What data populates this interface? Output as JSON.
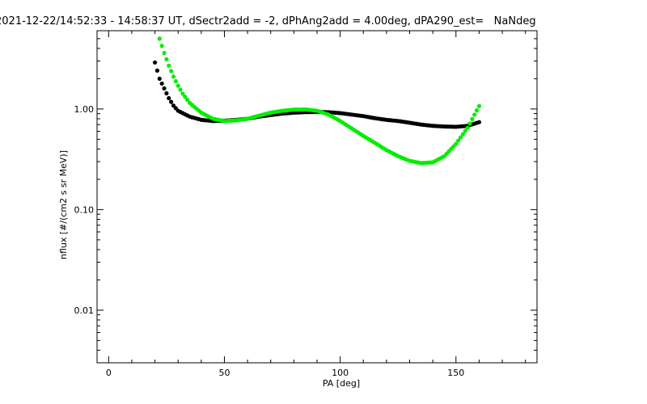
{
  "chart_data": {
    "type": "scatter",
    "title": "2021-12-22/14:52:33 - 14:58:37 UT, dSectr2add = -2, dPhAng2add = 4.00deg, dPA290_est=   NaNdeg",
    "xlabel": "PA [deg]",
    "ylabel": "nflux [#/(cm2 s sr MeV)]",
    "xlim": [
      -5,
      185
    ],
    "ylim": [
      0.003,
      6
    ],
    "y_scale": "log",
    "grid": false,
    "x_ticks": [
      {
        "value": 0,
        "label": "0"
      },
      {
        "value": 50,
        "label": "50"
      },
      {
        "value": 100,
        "label": "100"
      },
      {
        "value": 150,
        "label": "150"
      }
    ],
    "y_ticks": [
      {
        "value": 0.01,
        "label": "0.01"
      },
      {
        "value": 0.1,
        "label": "0.10"
      },
      {
        "value": 1,
        "label": "1.00"
      }
    ],
    "series": [
      {
        "color": "#000000",
        "points": [
          [
            20,
            2.9
          ],
          [
            22,
            2.0
          ],
          [
            24,
            1.6
          ],
          [
            26,
            1.28
          ],
          [
            28,
            1.08
          ],
          [
            30,
            0.96
          ],
          [
            35,
            0.84
          ],
          [
            40,
            0.78
          ],
          [
            45,
            0.76
          ],
          [
            50,
            0.765
          ],
          [
            55,
            0.78
          ],
          [
            60,
            0.8
          ],
          [
            65,
            0.84
          ],
          [
            70,
            0.87
          ],
          [
            75,
            0.9
          ],
          [
            80,
            0.92
          ],
          [
            85,
            0.93
          ],
          [
            90,
            0.935
          ],
          [
            95,
            0.93
          ],
          [
            100,
            0.91
          ],
          [
            105,
            0.88
          ],
          [
            110,
            0.85
          ],
          [
            115,
            0.81
          ],
          [
            120,
            0.78
          ],
          [
            125,
            0.76
          ],
          [
            130,
            0.73
          ],
          [
            135,
            0.7
          ],
          [
            140,
            0.68
          ],
          [
            145,
            0.67
          ],
          [
            150,
            0.665
          ],
          [
            155,
            0.68
          ],
          [
            160,
            0.74
          ]
        ]
      },
      {
        "color": "#00ee00",
        "points": [
          [
            22,
            5.0
          ],
          [
            24,
            3.6
          ],
          [
            26,
            2.7
          ],
          [
            28,
            2.1
          ],
          [
            30,
            1.7
          ],
          [
            32,
            1.42
          ],
          [
            35,
            1.15
          ],
          [
            40,
            0.92
          ],
          [
            45,
            0.8
          ],
          [
            50,
            0.76
          ],
          [
            55,
            0.77
          ],
          [
            60,
            0.8
          ],
          [
            65,
            0.86
          ],
          [
            70,
            0.92
          ],
          [
            75,
            0.96
          ],
          [
            80,
            0.985
          ],
          [
            85,
            0.99
          ],
          [
            90,
            0.96
          ],
          [
            95,
            0.88
          ],
          [
            100,
            0.76
          ],
          [
            105,
            0.64
          ],
          [
            110,
            0.54
          ],
          [
            115,
            0.46
          ],
          [
            120,
            0.39
          ],
          [
            125,
            0.34
          ],
          [
            130,
            0.305
          ],
          [
            135,
            0.29
          ],
          [
            140,
            0.295
          ],
          [
            145,
            0.34
          ],
          [
            150,
            0.45
          ],
          [
            155,
            0.65
          ],
          [
            160,
            1.07
          ]
        ]
      }
    ]
  }
}
